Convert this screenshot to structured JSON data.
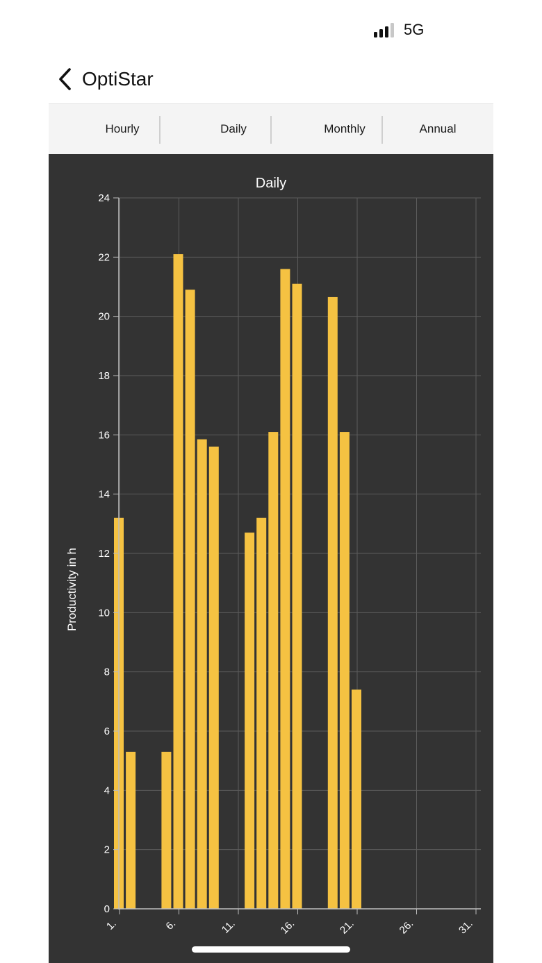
{
  "status_bar": {
    "network_label": "5G"
  },
  "nav": {
    "back_icon": "chevron-left-icon",
    "title": "OptiStar"
  },
  "tabs": [
    {
      "label": "Hourly"
    },
    {
      "label": "Daily"
    },
    {
      "label": "Monthly"
    },
    {
      "label": "Annual"
    }
  ],
  "colors": {
    "panel_background": "#333333",
    "bar": "#f5c242",
    "grid": "#5c5c5c",
    "text": "#ffffff"
  },
  "chart_data": {
    "type": "bar",
    "title": "Daily",
    "ylabel": "Productivity in h",
    "xlabel": "",
    "xlim": [
      1,
      31
    ],
    "ylim": [
      0,
      24
    ],
    "y_ticks": [
      0,
      2,
      4,
      6,
      8,
      10,
      12,
      14,
      16,
      18,
      20,
      22,
      24
    ],
    "x_ticks": [
      {
        "value": 1,
        "label": "1."
      },
      {
        "value": 6,
        "label": "6."
      },
      {
        "value": 11,
        "label": "11."
      },
      {
        "value": 16,
        "label": "16."
      },
      {
        "value": 21,
        "label": "21."
      },
      {
        "value": 26,
        "label": "26."
      },
      {
        "value": 31,
        "label": "31."
      }
    ],
    "grid": true,
    "legend": "none",
    "days": [
      1,
      2,
      3,
      4,
      5,
      6,
      7,
      8,
      9,
      10,
      11,
      12,
      13,
      14,
      15,
      16,
      17,
      18,
      19,
      20,
      21
    ],
    "values": [
      13.2,
      5.3,
      0,
      0,
      5.3,
      22.1,
      20.9,
      15.85,
      15.6,
      0,
      0,
      12.7,
      13.2,
      16.1,
      21.6,
      21.1,
      0,
      0,
      20.65,
      16.1,
      7.4
    ]
  }
}
